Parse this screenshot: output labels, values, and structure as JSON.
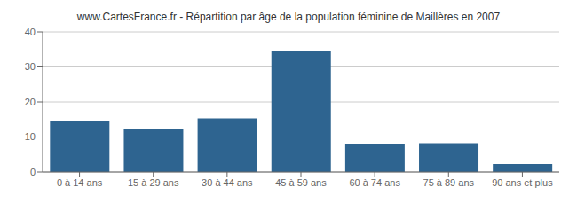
{
  "chart_data": {
    "type": "bar",
    "title": "www.CartesFrance.fr - Répartition par âge de la population féminine de Maillères en 2007",
    "categories": [
      "0 à 14 ans",
      "15 à 29 ans",
      "30 à 44 ans",
      "45 à 59 ans",
      "60 à 74 ans",
      "75 à 89 ans",
      "90 ans et plus"
    ],
    "values": [
      14.5,
      12.2,
      15.3,
      34.5,
      8.1,
      8.2,
      2.3
    ],
    "color": "#2e6490",
    "ylim": [
      0,
      40
    ],
    "yticks": [
      0,
      10,
      20,
      30,
      40
    ],
    "grid": true
  }
}
